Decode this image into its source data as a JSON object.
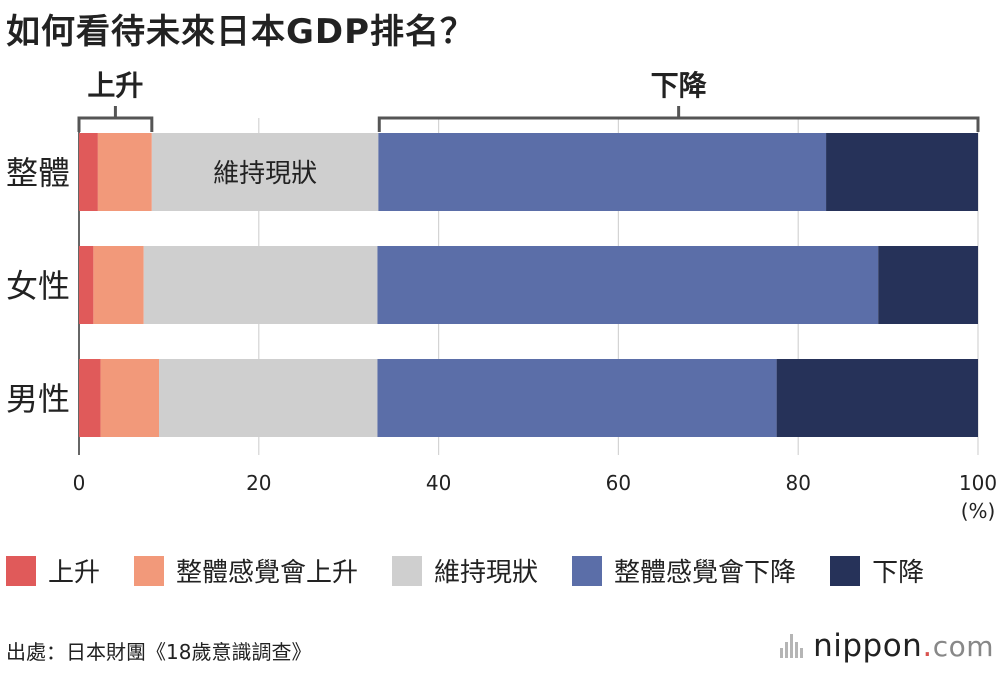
{
  "title": "如何看待未來日本GDP排名？",
  "chart_data": {
    "type": "bar",
    "orientation": "horizontal",
    "stacked": true,
    "categories": [
      "整體",
      "女性",
      "男性"
    ],
    "series": [
      {
        "name": "上升",
        "values": [
          2.1,
          1.6,
          2.4
        ],
        "color": "#e05a5a"
      },
      {
        "name": "整體感覺會上升",
        "values": [
          6.0,
          5.6,
          6.5
        ],
        "color": "#f2997a"
      },
      {
        "name": "維持現狀",
        "values": [
          25.2,
          26.0,
          24.3
        ],
        "color": "#cfcfcf"
      },
      {
        "name": "整體感覺會下降",
        "values": [
          49.8,
          55.7,
          44.4
        ],
        "color": "#5b6ea8"
      },
      {
        "name": "下降",
        "values": [
          16.9,
          11.1,
          22.4
        ],
        "color": "#263259"
      }
    ],
    "xlim": [
      0,
      100
    ],
    "xticks": [
      "0",
      "20",
      "40",
      "60",
      "80",
      "100"
    ],
    "unit": "(%)",
    "grid": true,
    "inline_label": "維持現狀",
    "brackets": [
      {
        "label": "上升",
        "from": 0,
        "to": 8.1
      },
      {
        "label": "下降",
        "from": 33.4,
        "to": 100
      }
    ]
  },
  "source": "出處：日本財團《18歲意識調查》",
  "brand": {
    "name": "nippon",
    "dot": ".",
    "tld": "com"
  }
}
